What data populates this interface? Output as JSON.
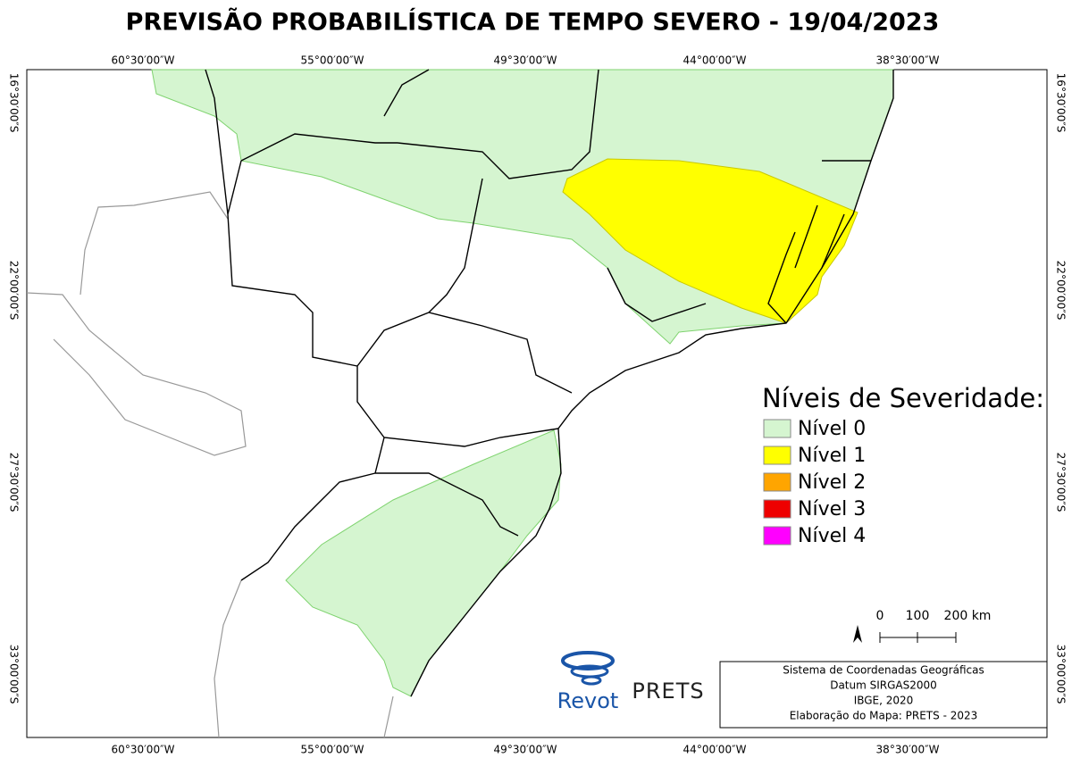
{
  "header": {
    "title": "PREVISÃO PROBABILÍSTICA DE TEMPO SEVERO - 19/04/2023"
  },
  "frame": {
    "top_labels": [
      "60°30′00″W",
      "55°00′00″W",
      "49°30′00″W",
      "44°00′00″W",
      "38°30′00″W"
    ],
    "bottom_labels": [
      "60°30′00″W",
      "55°00′00″W",
      "49°30′00″W",
      "44°00′00″W",
      "38°30′00″W"
    ],
    "left_labels": [
      "16°30′00″S",
      "22°00′00″S",
      "27°30′00″S",
      "33°00′00″S"
    ],
    "right_labels": [
      "16°30′00″S",
      "22°00′00″S",
      "27°30′00″S",
      "33°00′00″S"
    ]
  },
  "legend": {
    "title": "Níveis de Severidade:",
    "items": [
      {
        "label": "Nível 0",
        "color": "#d5f5d0"
      },
      {
        "label": "Nível 1",
        "color": "#ffff00"
      },
      {
        "label": "Nível 2",
        "color": "#ffa500"
      },
      {
        "label": "Nível 3",
        "color": "#ee0000"
      },
      {
        "label": "Nível 4",
        "color": "#ff00ff"
      }
    ]
  },
  "scale": {
    "labels": [
      "0",
      "100",
      "200 km"
    ]
  },
  "info": {
    "lines": [
      "Sistema de Coordenadas Geográficas",
      "Datum SIRGAS2000",
      "IBGE, 2020",
      "Elaboração do Mapa: PRETS - 2023"
    ]
  },
  "logos": {
    "revot": "Revot",
    "prets": "PRETS"
  }
}
